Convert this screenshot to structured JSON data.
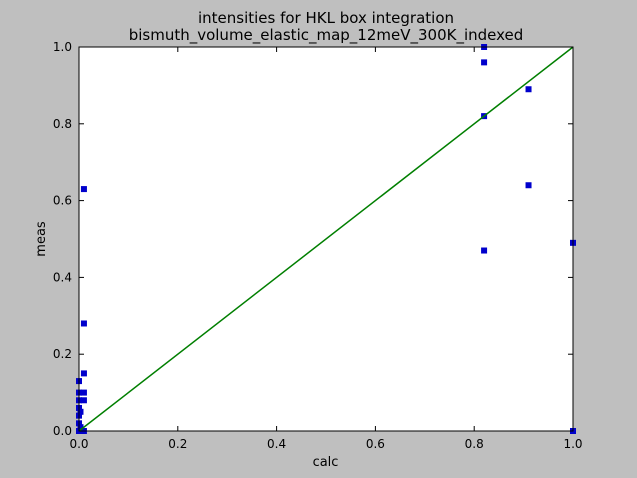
{
  "chart_data": {
    "type": "scatter",
    "title": [
      "intensities for HKL box integration",
      "bismuth_volume_elastic_map_12meV_300K_indexed"
    ],
    "xlabel": "calc",
    "ylabel": "meas",
    "xlim": [
      0.0,
      1.0
    ],
    "ylim": [
      0.0,
      1.0
    ],
    "xticks": [
      "0.0",
      "0.2",
      "0.4",
      "0.6",
      "0.8",
      "1.0"
    ],
    "yticks": [
      "0.0",
      "0.2",
      "0.4",
      "0.6",
      "0.8",
      "1.0"
    ],
    "grid": false,
    "series": [
      {
        "kind": "markers",
        "marker": "square",
        "color": "#0000cc",
        "points": [
          [
            0.0,
            0.13
          ],
          [
            0.0,
            0.1
          ],
          [
            0.0,
            0.08
          ],
          [
            0.0,
            0.06
          ],
          [
            0.0,
            0.04
          ],
          [
            0.0,
            0.02
          ],
          [
            0.0,
            0.0
          ],
          [
            0.003,
            0.05
          ],
          [
            0.003,
            0.01
          ],
          [
            0.01,
            0.63
          ],
          [
            0.01,
            0.28
          ],
          [
            0.01,
            0.15
          ],
          [
            0.01,
            0.1
          ],
          [
            0.01,
            0.08
          ],
          [
            0.01,
            0.0
          ],
          [
            0.82,
            1.0
          ],
          [
            0.82,
            0.96
          ],
          [
            0.82,
            0.82
          ],
          [
            0.82,
            0.47
          ],
          [
            0.91,
            0.89
          ],
          [
            0.91,
            0.64
          ],
          [
            1.0,
            0.49
          ],
          [
            1.0,
            0.0
          ]
        ]
      },
      {
        "kind": "line",
        "color": "#007f00",
        "points": [
          [
            0.0,
            0.0
          ],
          [
            1.0,
            1.0
          ]
        ]
      }
    ]
  }
}
